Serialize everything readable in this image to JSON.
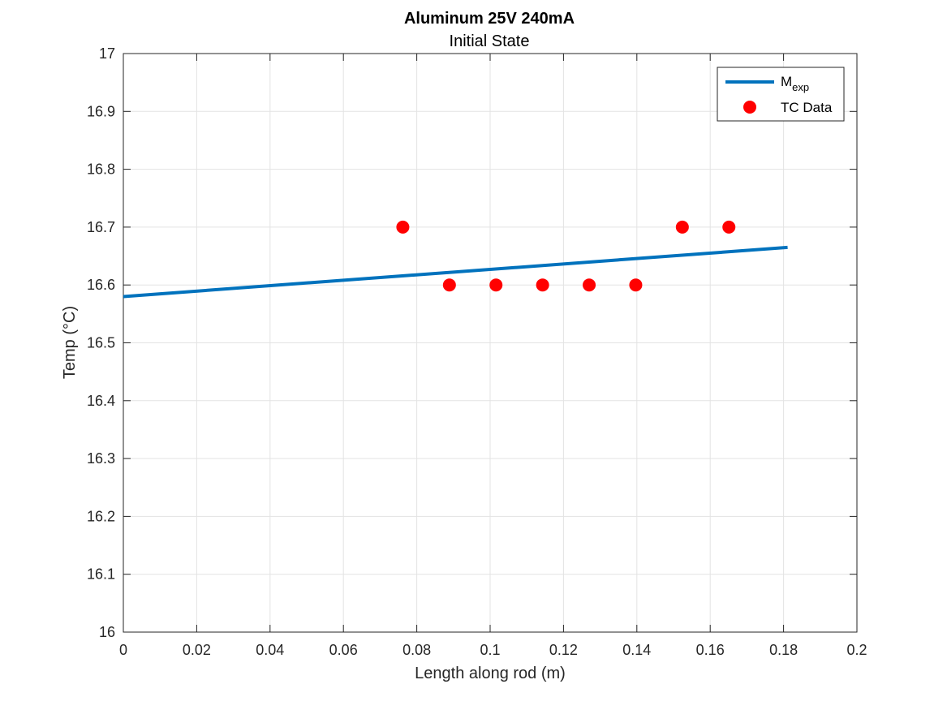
{
  "chart_data": {
    "type": "line",
    "title": "Aluminum 25V 240mA",
    "subtitle": "Initial State",
    "xlabel": "Length along rod (m)",
    "ylabel": "Temp (°C)",
    "xlim": [
      0,
      0.2
    ],
    "ylim": [
      16,
      17
    ],
    "xticks": [
      0,
      0.02,
      0.04,
      0.06,
      0.08,
      0.1,
      0.12,
      0.14,
      0.16,
      0.18,
      0.2
    ],
    "xtick_labels": [
      "0",
      "0.02",
      "0.04",
      "0.06",
      "0.08",
      "0.1",
      "0.12",
      "0.14",
      "0.16",
      "0.18",
      "0.2"
    ],
    "yticks": [
      16,
      16.1,
      16.2,
      16.3,
      16.4,
      16.5,
      16.6,
      16.7,
      16.8,
      16.9,
      17
    ],
    "ytick_labels": [
      "16",
      "16.1",
      "16.2",
      "16.3",
      "16.4",
      "16.5",
      "16.6",
      "16.7",
      "16.8",
      "16.9",
      "17"
    ],
    "grid": true,
    "legend_position": "top-right",
    "series": [
      {
        "name": "M",
        "name_subscript": "exp",
        "kind": "line",
        "color": "#0072BD",
        "x": [
          0,
          0.1811
        ],
        "y": [
          16.58,
          16.665
        ]
      },
      {
        "name": "TC Data",
        "kind": "scatter",
        "color": "#FF0000",
        "x": [
          0.0762,
          0.0889,
          0.1016,
          0.1143,
          0.127,
          0.1397,
          0.1524,
          0.1651
        ],
        "y": [
          16.7,
          16.6,
          16.6,
          16.6,
          16.6,
          16.6,
          16.7,
          16.7
        ]
      }
    ]
  }
}
